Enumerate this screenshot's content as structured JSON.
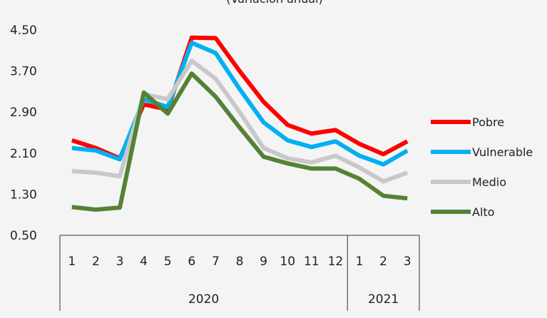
{
  "chart_data": {
    "type": "line",
    "title": "(Variación anual)",
    "xlabel": "",
    "ylabel": "",
    "ylim": [
      0.5,
      4.5
    ],
    "yticks": [
      "0.50",
      "1.30",
      "2.10",
      "2.90",
      "3.70",
      "4.50"
    ],
    "categories": [
      "1",
      "2",
      "3",
      "4",
      "5",
      "6",
      "7",
      "8",
      "9",
      "10",
      "11",
      "12",
      "1",
      "2",
      "3"
    ],
    "groups": [
      {
        "label": "2020",
        "count": 12
      },
      {
        "label": "2021",
        "count": 3
      }
    ],
    "legend_position": "right",
    "grid": false,
    "series": [
      {
        "name": "Pobre",
        "color": "#ff0000",
        "values": [
          2.35,
          2.2,
          2.0,
          3.05,
          2.95,
          4.35,
          4.34,
          3.7,
          3.1,
          2.65,
          2.48,
          2.55,
          2.28,
          2.08,
          2.33
        ]
      },
      {
        "name": "Vulnerable",
        "color": "#00b0f0",
        "values": [
          2.2,
          2.15,
          1.98,
          3.15,
          3.0,
          4.25,
          4.05,
          3.35,
          2.7,
          2.35,
          2.22,
          2.33,
          2.05,
          1.88,
          2.15
        ]
      },
      {
        "name": "Medio",
        "color": "#c8c8c8",
        "values": [
          1.75,
          1.72,
          1.65,
          3.25,
          3.15,
          3.9,
          3.55,
          2.9,
          2.2,
          2.0,
          1.92,
          2.05,
          1.82,
          1.55,
          1.72
        ]
      },
      {
        "name": "Alto",
        "color": "#548235",
        "values": [
          1.05,
          1.0,
          1.04,
          3.28,
          2.87,
          3.65,
          3.2,
          2.6,
          2.03,
          1.9,
          1.8,
          1.8,
          1.6,
          1.27,
          1.22
        ]
      }
    ]
  }
}
